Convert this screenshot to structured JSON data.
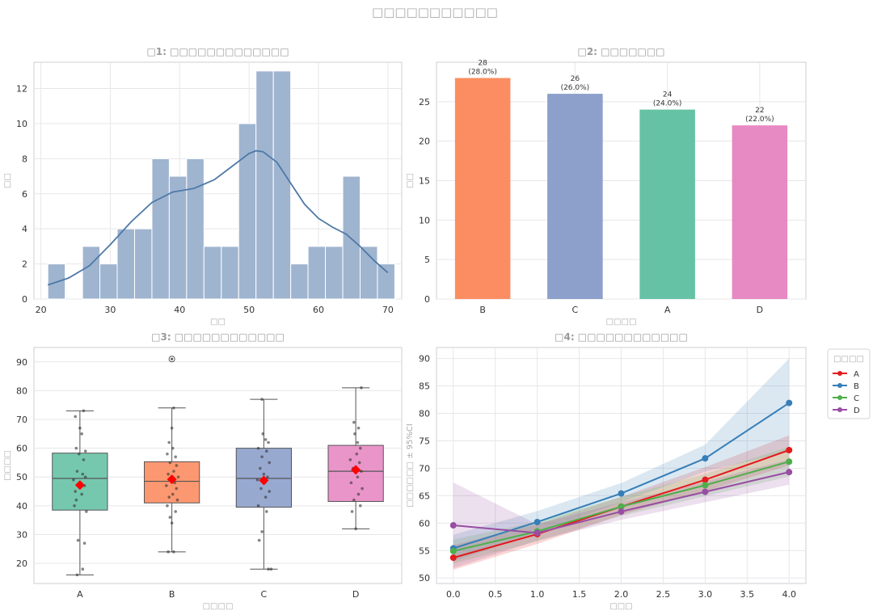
{
  "suptitle": "□□□□□□□□□□□",
  "colors": {
    "grid": "#e7e7ea",
    "axis": "#cfcfd4",
    "tick": "#333333",
    "hist": "#9fb4cf",
    "kde": "#4e79a7",
    "groups": {
      "A": "#66c2a5",
      "B": "#fc8d62",
      "C": "#8da0cb",
      "D": "#e78ac3"
    },
    "lines": {
      "A": "#e41a1c",
      "B": "#377eb8",
      "C": "#4daf4a",
      "D": "#984ea3"
    },
    "mean_marker": "#ff0000"
  },
  "chart_data": [
    {
      "id": "hist",
      "type": "bar",
      "title": "□1: □□□□□□□□□□□□□",
      "xlabel": "□□",
      "ylabel": "□□",
      "xlim": [
        19,
        72
      ],
      "ylim": [
        0,
        13.5
      ],
      "xticks": [
        20,
        30,
        40,
        50,
        60,
        70
      ],
      "yticks": [
        0,
        2,
        4,
        6,
        8,
        10,
        12
      ],
      "bins": [
        {
          "x0": 21.0,
          "x1": 23.5,
          "count": 2
        },
        {
          "x0": 23.5,
          "x1": 26.0,
          "count": 0
        },
        {
          "x0": 26.0,
          "x1": 28.5,
          "count": 3
        },
        {
          "x0": 28.5,
          "x1": 31.0,
          "count": 2
        },
        {
          "x0": 31.0,
          "x1": 33.5,
          "count": 4
        },
        {
          "x0": 33.5,
          "x1": 36.0,
          "count": 4
        },
        {
          "x0": 36.0,
          "x1": 38.5,
          "count": 8
        },
        {
          "x0": 38.5,
          "x1": 41.0,
          "count": 7
        },
        {
          "x0": 41.0,
          "x1": 43.5,
          "count": 8
        },
        {
          "x0": 43.5,
          "x1": 46.0,
          "count": 3
        },
        {
          "x0": 46.0,
          "x1": 48.5,
          "count": 3
        },
        {
          "x0": 48.5,
          "x1": 51.0,
          "count": 10
        },
        {
          "x0": 51.0,
          "x1": 53.5,
          "count": 13
        },
        {
          "x0": 53.5,
          "x1": 56.0,
          "count": 13
        },
        {
          "x0": 56.0,
          "x1": 58.5,
          "count": 2
        },
        {
          "x0": 58.5,
          "x1": 61.0,
          "count": 3
        },
        {
          "x0": 61.0,
          "x1": 63.5,
          "count": 3
        },
        {
          "x0": 63.5,
          "x1": 66.0,
          "count": 7
        },
        {
          "x0": 66.0,
          "x1": 68.5,
          "count": 3
        },
        {
          "x0": 68.5,
          "x1": 71.0,
          "count": 2
        }
      ],
      "kde": [
        [
          21,
          0.8
        ],
        [
          24,
          1.2
        ],
        [
          27,
          1.9
        ],
        [
          30,
          3.1
        ],
        [
          33,
          4.4
        ],
        [
          36,
          5.5
        ],
        [
          39,
          6.1
        ],
        [
          42,
          6.3
        ],
        [
          45,
          6.8
        ],
        [
          48,
          7.7
        ],
        [
          50,
          8.3
        ],
        [
          51,
          8.45
        ],
        [
          52,
          8.4
        ],
        [
          54,
          7.8
        ],
        [
          56,
          6.6
        ],
        [
          58,
          5.4
        ],
        [
          60,
          4.6
        ],
        [
          62,
          4.1
        ],
        [
          64,
          3.7
        ],
        [
          66,
          3.0
        ],
        [
          68,
          2.2
        ],
        [
          70,
          1.5
        ]
      ]
    },
    {
      "id": "counts",
      "type": "bar",
      "title": "□2: □□□□□□□",
      "xlabel": "□□□□",
      "ylabel": "□□",
      "ylim": [
        0,
        30
      ],
      "yticks": [
        0,
        5,
        10,
        15,
        20,
        25
      ],
      "categories": [
        "B",
        "C",
        "A",
        "D"
      ],
      "values": [
        28,
        26,
        24,
        22
      ],
      "labels": [
        [
          "28",
          "(28.0%)"
        ],
        [
          "26",
          "(26.0%)"
        ],
        [
          "24",
          "(24.0%)"
        ],
        [
          "22",
          "(22.0%)"
        ]
      ]
    },
    {
      "id": "box",
      "type": "box",
      "title": "□3: □□□□□□□□□□□□",
      "xlabel": "□□□□",
      "ylabel": "□□□□",
      "ylim": [
        13,
        95
      ],
      "yticks": [
        20,
        30,
        40,
        50,
        60,
        70,
        80,
        90
      ],
      "groups": [
        {
          "name": "A",
          "min": 16,
          "q1": 38.5,
          "median": 49.5,
          "q3": 58.3,
          "max": 73,
          "mean": 47.2,
          "outliers": [],
          "points": [
            [
              -0.03,
              16
            ],
            [
              0.03,
              18
            ],
            [
              0.05,
              27
            ],
            [
              -0.02,
              28
            ],
            [
              0.07,
              38
            ],
            [
              -0.06,
              40
            ],
            [
              -0.04,
              42
            ],
            [
              0.02,
              44
            ],
            [
              -0.05,
              45
            ],
            [
              0.05,
              47
            ],
            [
              0.0,
              48
            ],
            [
              -0.07,
              49
            ],
            [
              0.06,
              50
            ],
            [
              0.03,
              51
            ],
            [
              -0.03,
              52
            ],
            [
              0.04,
              56
            ],
            [
              -0.01,
              58
            ],
            [
              0.06,
              59
            ],
            [
              -0.04,
              60
            ],
            [
              0.02,
              65
            ],
            [
              0.0,
              67
            ],
            [
              -0.05,
              71
            ],
            [
              0.04,
              73
            ]
          ]
        },
        {
          "name": "B",
          "min": 24,
          "q1": 41,
          "median": 48.5,
          "q3": 55.3,
          "max": 74,
          "mean": 49.2,
          "outliers": [
            91
          ],
          "points": [
            [
              -0.04,
              24
            ],
            [
              0.02,
              24
            ],
            [
              0.0,
              34
            ],
            [
              -0.02,
              36
            ],
            [
              0.04,
              38
            ],
            [
              -0.05,
              40
            ],
            [
              0.06,
              42
            ],
            [
              -0.03,
              43
            ],
            [
              0.01,
              44
            ],
            [
              0.05,
              46
            ],
            [
              -0.06,
              47
            ],
            [
              0.03,
              48
            ],
            [
              -0.01,
              49
            ],
            [
              0.07,
              50
            ],
            [
              -0.04,
              51
            ],
            [
              0.02,
              52
            ],
            [
              0.05,
              54
            ],
            [
              -0.02,
              55
            ],
            [
              0.04,
              57
            ],
            [
              -0.05,
              58
            ],
            [
              0.01,
              60
            ],
            [
              -0.03,
              62
            ],
            [
              0.0,
              67
            ],
            [
              0.02,
              74
            ]
          ]
        },
        {
          "name": "C",
          "min": 18,
          "q1": 39.5,
          "median": 49.5,
          "q3": 60,
          "max": 77,
          "mean": 48.8,
          "outliers": [],
          "points": [
            [
              0.05,
              18
            ],
            [
              0.08,
              18
            ],
            [
              -0.05,
              28
            ],
            [
              -0.02,
              31
            ],
            [
              0.03,
              38
            ],
            [
              -0.06,
              40
            ],
            [
              0.02,
              43
            ],
            [
              0.06,
              45
            ],
            [
              -0.03,
              46
            ],
            [
              0.01,
              48
            ],
            [
              -0.07,
              49
            ],
            [
              0.04,
              50
            ],
            [
              0.0,
              51
            ],
            [
              -0.04,
              53
            ],
            [
              0.06,
              55
            ],
            [
              -0.02,
              57
            ],
            [
              0.03,
              59
            ],
            [
              -0.06,
              60
            ],
            [
              0.05,
              62
            ],
            [
              0.02,
              63
            ],
            [
              -0.01,
              65
            ],
            [
              -0.02,
              77
            ]
          ]
        },
        {
          "name": "D",
          "min": 32,
          "q1": 41.5,
          "median": 52,
          "q3": 61,
          "max": 81,
          "mean": 52.5,
          "outliers": [],
          "points": [
            [
              0.0,
              32
            ],
            [
              -0.04,
              38
            ],
            [
              0.05,
              40
            ],
            [
              -0.02,
              42
            ],
            [
              0.03,
              44
            ],
            [
              0.07,
              46
            ],
            [
              -0.05,
              48
            ],
            [
              0.02,
              50
            ],
            [
              0.06,
              52
            ],
            [
              -0.03,
              53
            ],
            [
              0.04,
              55
            ],
            [
              -0.06,
              56
            ],
            [
              0.01,
              58
            ],
            [
              0.05,
              60
            ],
            [
              0.02,
              62
            ],
            [
              -0.01,
              65
            ],
            [
              0.03,
              67
            ],
            [
              -0.02,
              69
            ],
            [
              0.06,
              81
            ]
          ]
        }
      ]
    },
    {
      "id": "lines",
      "type": "line",
      "title": "□4: □□□□□□□□□□□□",
      "xlabel": "□□□",
      "ylabel": "□□□□□□ ± 95%CI",
      "xlim": [
        -0.2,
        4.2
      ],
      "ylim": [
        49,
        92
      ],
      "xticks": [
        0.0,
        0.5,
        1.0,
        1.5,
        2.0,
        2.5,
        3.0,
        3.5,
        4.0
      ],
      "yticks": [
        50,
        55,
        60,
        65,
        70,
        75,
        80,
        85,
        90
      ],
      "x": [
        0,
        1,
        2,
        3,
        4
      ],
      "legend_title": "□□□□",
      "series": [
        {
          "name": "A",
          "values": [
            53.7,
            58.0,
            63.0,
            67.9,
            73.3
          ],
          "lower": [
            51.5,
            56.2,
            61.5,
            65.8,
            70.5
          ],
          "upper": [
            56.0,
            59.8,
            64.8,
            70.2,
            76.0
          ]
        },
        {
          "name": "B",
          "values": [
            55.4,
            60.2,
            65.4,
            71.8,
            81.9
          ],
          "lower": [
            53.0,
            58.3,
            63.8,
            69.4,
            73.0
          ],
          "upper": [
            57.9,
            62.2,
            67.3,
            74.3,
            90.0
          ]
        },
        {
          "name": "C",
          "values": [
            54.9,
            58.5,
            63.0,
            66.9,
            71.2
          ],
          "lower": [
            52.6,
            56.7,
            61.3,
            64.9,
            68.5
          ],
          "upper": [
            57.0,
            60.3,
            64.8,
            69.0,
            73.9
          ]
        },
        {
          "name": "D",
          "values": [
            59.6,
            58.2,
            62.1,
            65.7,
            69.3
          ],
          "lower": [
            51.8,
            56.8,
            60.6,
            63.8,
            67.0
          ],
          "upper": [
            67.4,
            59.8,
            63.8,
            67.6,
            71.6
          ]
        }
      ]
    }
  ]
}
